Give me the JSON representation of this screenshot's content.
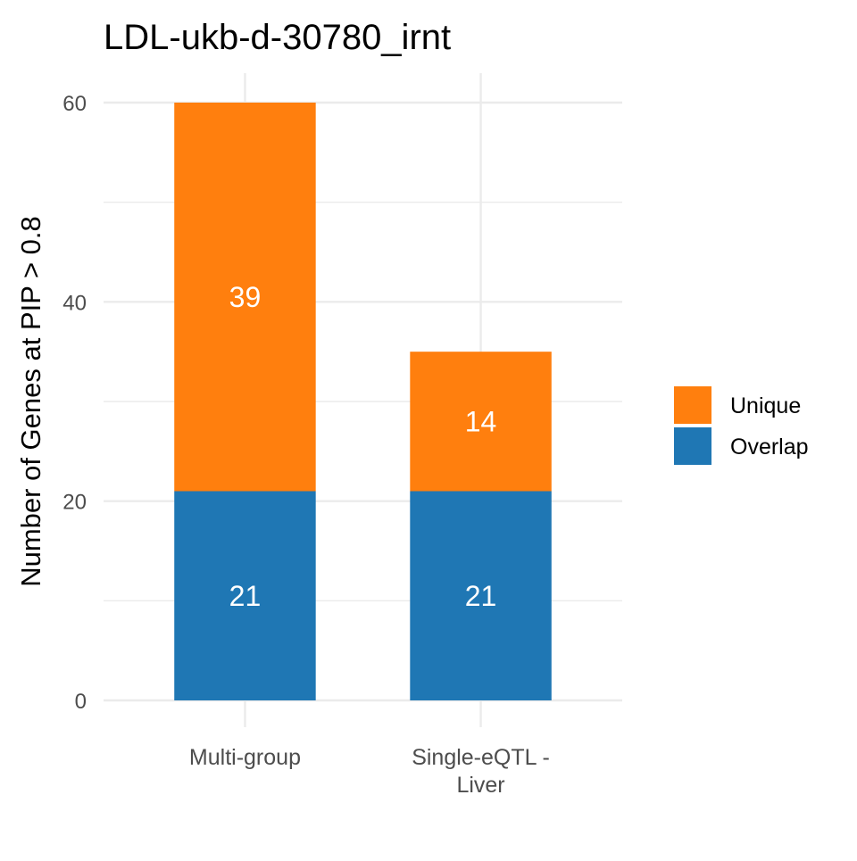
{
  "chart_data": {
    "type": "bar",
    "stacked": true,
    "title": "LDL-ukb-d-30780_irnt",
    "xlabel": "",
    "ylabel": "Number of Genes at PIP > 0.8",
    "categories": [
      "Multi-group",
      "Single-eQTL - Liver"
    ],
    "category_lines": [
      [
        "Multi-group"
      ],
      [
        "Single-eQTL -",
        "Liver"
      ]
    ],
    "series": [
      {
        "name": "Overlap",
        "color": "#1f77b4",
        "values": [
          21,
          21
        ]
      },
      {
        "name": "Unique",
        "color": "#ff7f0e",
        "values": [
          39,
          14
        ]
      }
    ],
    "legend_order": [
      "Unique",
      "Overlap"
    ],
    "ylim": [
      0,
      60
    ],
    "yticks": [
      0,
      20,
      40,
      60
    ],
    "grid": true,
    "legend_position": "right",
    "value_labels": true
  }
}
